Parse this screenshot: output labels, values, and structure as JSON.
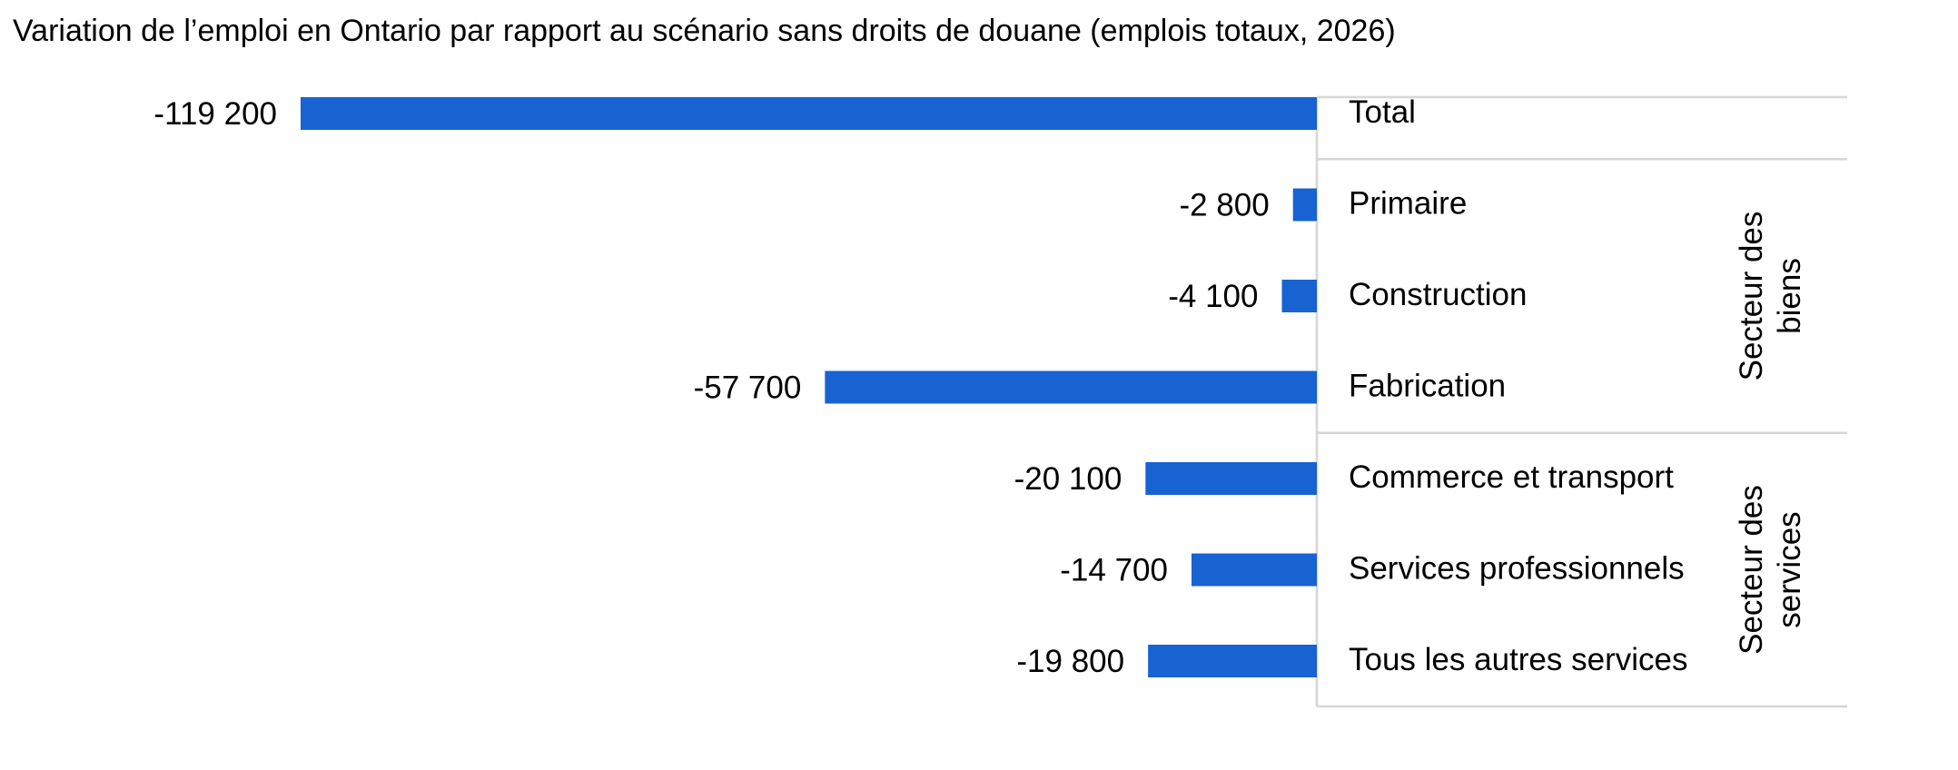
{
  "chart_data": {
    "type": "bar",
    "orientation": "horizontal",
    "title": "Variation de l’emploi en Ontario par rapport au scénario sans droits de douane (emplois totaux, 2026)",
    "categories": [
      "Total",
      "Primaire",
      "Construction",
      "Fabrication",
      "Commerce et transport",
      "Services professionnels",
      "Tous les autres services"
    ],
    "values": [
      -119200,
      -2800,
      -4100,
      -57700,
      -20100,
      -14700,
      -19800
    ],
    "value_labels": [
      "-119 200",
      "-2 800",
      "-4 100",
      "-57 700",
      "-20 100",
      "-14 700",
      "-19 800"
    ],
    "groups": [
      {
        "lines": [
          "Secteur des",
          "biens"
        ],
        "categories": [
          "Primaire",
          "Construction",
          "Fabrication"
        ]
      },
      {
        "lines": [
          "Secteur des",
          "services"
        ],
        "categories": [
          "Commerce et transport",
          "Services professionnels",
          "Tous les autres services"
        ]
      }
    ],
    "xlim": [
      -119200,
      0
    ],
    "grid": false,
    "legend": "none",
    "bar_color": "#1763d1"
  }
}
